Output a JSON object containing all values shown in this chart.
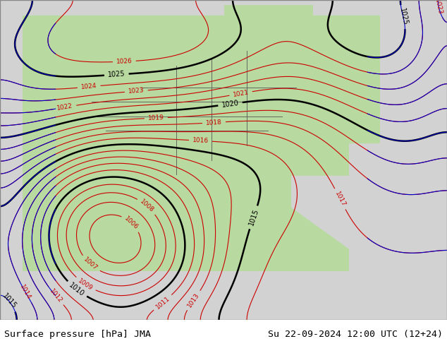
{
  "title_left": "Surface pressure [hPa] JMA",
  "title_right": "Su 22-09-2024 12:00 UTC (12+24)",
  "bg_color": "#d3d3d3",
  "land_color": "#b8d9a0",
  "ocean_color": "#d3d3d3",
  "fig_width": 6.34,
  "fig_height": 4.9,
  "dpi": 100,
  "footer_fontsize": 9.5,
  "isobar_colors": {
    "black": "#000000",
    "red": "#cc0000",
    "blue": "#0000cc"
  },
  "contour_interval": 1
}
